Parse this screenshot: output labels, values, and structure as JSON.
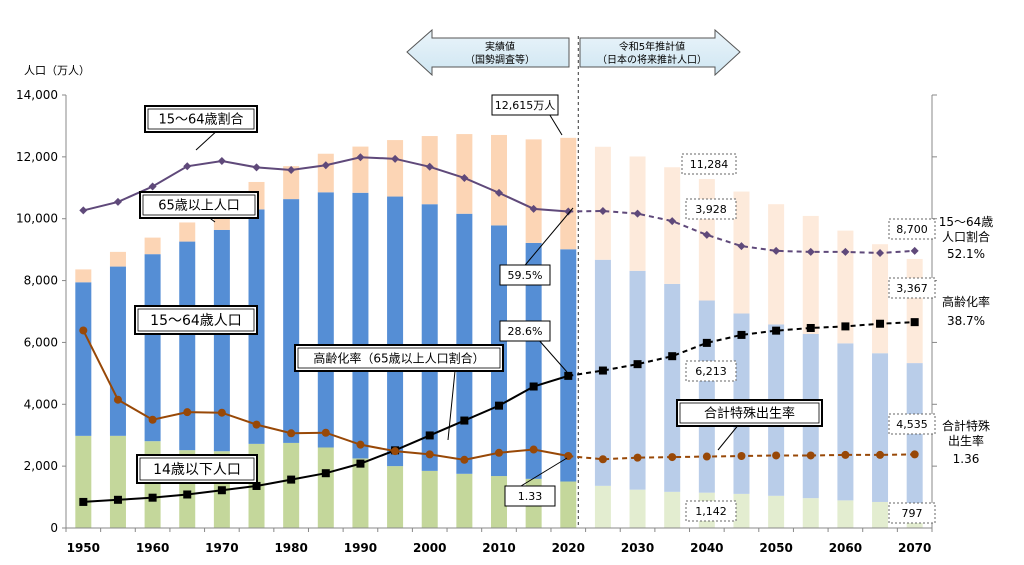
{
  "chart_data": {
    "type": "bar",
    "ylabel": "人口（万人）",
    "ylim": [
      0,
      14000
    ],
    "y_ticks": [
      "0",
      "2,000",
      "4,000",
      "6,000",
      "8,000",
      "10,000",
      "12,000",
      "14,000"
    ],
    "x_ticks": [
      "1950",
      "1960",
      "1970",
      "1980",
      "1990",
      "2000",
      "2010",
      "2020",
      "2030",
      "2040",
      "2050",
      "2060",
      "2070"
    ],
    "period_actual": "実績値\n（国勢調査等）",
    "period_projection": "令和5年推計値\n（日本の将来推計人口）",
    "colors": {
      "under15": "#c4d79b",
      "working": "#558ed5",
      "over65": "#fcd5b5",
      "under15_proj": "#e3edd0",
      "working_proj": "#b9cde9",
      "over65_proj": "#fdeadb",
      "ratio15_64": "#5f497a",
      "aging": "#000000",
      "fertility": "#984807"
    },
    "x": [
      1950,
      1955,
      1960,
      1965,
      1970,
      1975,
      1980,
      1985,
      1990,
      1995,
      2000,
      2005,
      2010,
      2015,
      2020,
      2025,
      2030,
      2035,
      2040,
      2045,
      2050,
      2055,
      2060,
      2065,
      2070
    ],
    "projection_start": 2025,
    "series": [
      {
        "name": "14歳以下人口",
        "type": "bar",
        "values": [
          2979,
          2980,
          2807,
          2517,
          2482,
          2720,
          2751,
          2603,
          2249,
          2001,
          1847,
          1752,
          1680,
          1589,
          1503,
          1363,
          1240,
          1169,
          1142,
          1103,
          1041,
          966,
          893,
          842,
          797
        ]
      },
      {
        "name": "15～64歳人口",
        "type": "bar",
        "values": [
          4966,
          5473,
          6047,
          6744,
          7157,
          7581,
          7883,
          8251,
          8590,
          8716,
          8622,
          8409,
          8103,
          7629,
          7509,
          7310,
          7076,
          6722,
          6213,
          5832,
          5540,
          5307,
          5078,
          4809,
          4535
        ]
      },
      {
        "name": "65歳以上人口",
        "type": "bar",
        "values": [
          416,
          475,
          535,
          618,
          733,
          887,
          1065,
          1247,
          1493,
          1826,
          2204,
          2576,
          2925,
          3347,
          3603,
          3653,
          3696,
          3773,
          3928,
          3943,
          3888,
          3817,
          3644,
          3525,
          3367
        ]
      },
      {
        "name": "15～64歳割合",
        "type": "line",
        "values": [
          59.7,
          61.3,
          64.2,
          68.0,
          69.0,
          67.8,
          67.3,
          68.2,
          69.7,
          69.4,
          67.9,
          65.8,
          63.0,
          60.0,
          59.5,
          59.6,
          59.1,
          57.7,
          55.1,
          53.0,
          52.1,
          51.9,
          51.9,
          51.7,
          52.1
        ]
      },
      {
        "name": "高齢化率（65歳以上人口割合）",
        "type": "line",
        "values": [
          4.9,
          5.3,
          5.7,
          6.3,
          7.1,
          7.9,
          9.1,
          10.3,
          12.1,
          14.6,
          17.4,
          20.2,
          23.0,
          26.6,
          28.6,
          29.6,
          30.8,
          32.3,
          34.8,
          36.3,
          37.1,
          37.6,
          37.9,
          38.4,
          38.7
        ]
      },
      {
        "name": "合計特殊出生率",
        "type": "line",
        "values": [
          3.65,
          2.37,
          2.0,
          2.14,
          2.13,
          1.91,
          1.75,
          1.76,
          1.54,
          1.42,
          1.36,
          1.26,
          1.39,
          1.45,
          1.33,
          1.27,
          1.3,
          1.31,
          1.32,
          1.33,
          1.34,
          1.34,
          1.35,
          1.35,
          1.36
        ]
      }
    ],
    "ratio_axis_range": [
      0,
      81.4
    ],
    "fertility_axis_range": [
      0,
      8.0
    ],
    "series_labels": {
      "ratio15_64": "15～64歳割合",
      "over65": "65歳以上人口",
      "working": "15～64歳人口",
      "aging": "高齢化率（65歳以上人口割合）",
      "fertility": "合計特殊出生率",
      "under15": "14歳以下人口"
    },
    "annotations": {
      "total2020": "12,615万人",
      "total2040": "11,284",
      "total2070": "8,700",
      "over65_2040": "3,928",
      "over65_2070": "3,367",
      "working_2040": "6,213",
      "working_2070": "4,535",
      "under15_2040": "1,142",
      "under15_2070": "797",
      "ratio2020": "59.5%",
      "aging2020": "28.6%",
      "fertility2020": "1.33"
    },
    "right_labels": {
      "ratio_title": "15～64歳\n人口割合",
      "ratio_value": "52.1%",
      "aging_title": "高齢化率",
      "aging_value": "38.7%",
      "fertility_title": "合計特殊\n出生率",
      "fertility_value": "1.36"
    }
  }
}
